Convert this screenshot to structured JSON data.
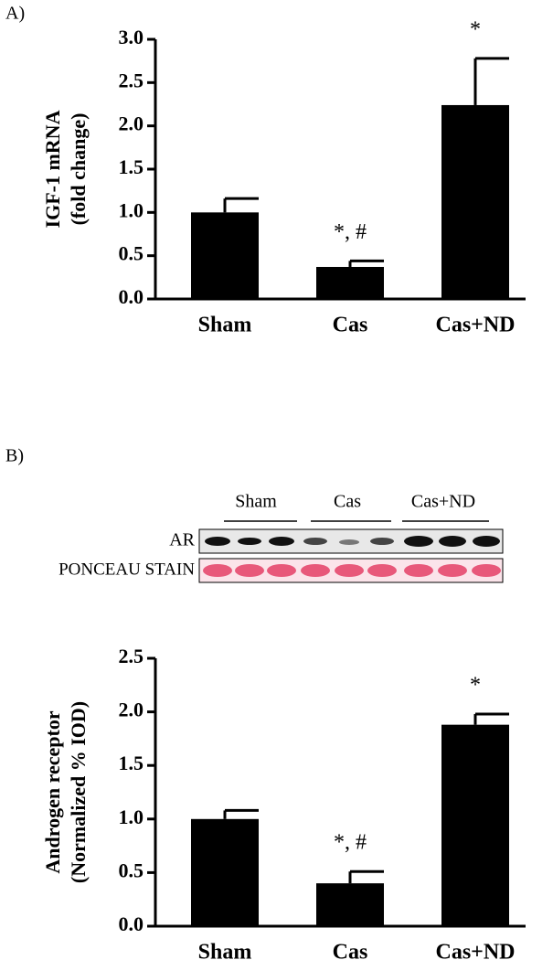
{
  "panel_labels": [
    "A)",
    "B)"
  ],
  "blot": {
    "lanes": [
      "Sham",
      "Cas",
      "Cas+ND"
    ],
    "rows": [
      "AR",
      "PONCEAU STAIN"
    ]
  },
  "chart_data": [
    {
      "type": "bar",
      "ylabel": [
        "IGF-1 mRNA",
        "(fold change)"
      ],
      "categories": [
        "Sham",
        "Cas",
        "Cas+ND"
      ],
      "values": [
        1.0,
        0.37,
        2.24
      ],
      "errors": [
        0.16,
        0.07,
        0.54
      ],
      "color": "#000000",
      "annotations": [
        {
          "category": 1,
          "text": "*, #"
        },
        {
          "category": 2,
          "text": "*"
        }
      ],
      "ylim": [
        0,
        3
      ],
      "yticks": [
        {
          "value": 0,
          "label": "0.0"
        },
        0.5,
        {
          "value": 1,
          "label": "1.0"
        },
        1.5,
        {
          "value": 2,
          "label": "2.0"
        },
        2.5,
        {
          "value": 3,
          "label": "3.0"
        }
      ]
    },
    {
      "type": "bar",
      "ylabel": [
        "Androgen receptor",
        "(Normalized % IOD)"
      ],
      "categories": [
        "Sham",
        "Cas",
        "Cas+ND"
      ],
      "values": [
        1.0,
        0.4,
        1.88
      ],
      "errors": [
        0.08,
        0.11,
        0.1
      ],
      "color": "#000000",
      "annotations": [
        {
          "category": 1,
          "text": "*, #"
        },
        {
          "category": 2,
          "text": "*"
        }
      ],
      "ylim": [
        0,
        2.5
      ],
      "yticks": [
        {
          "value": 0,
          "label": "0.0"
        },
        0.5,
        {
          "value": 1,
          "label": "1.0"
        },
        1.5,
        {
          "value": 2,
          "label": "2.0"
        },
        2.5
      ]
    }
  ]
}
